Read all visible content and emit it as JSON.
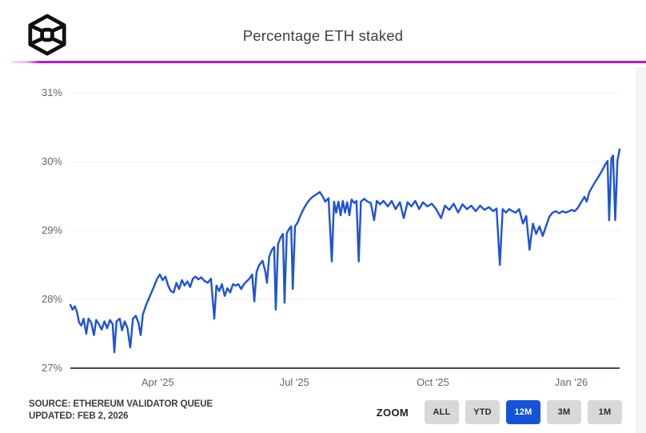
{
  "header": {
    "title": "Percentage ETH staked",
    "logo_icon": "cube-logo-icon",
    "accent_color": "#bd17d8"
  },
  "chart_data": {
    "type": "line",
    "title": "Percentage ETH staked",
    "series_name": "Percentage ETH staked",
    "line_color": "#1d52da",
    "grid": true,
    "legend": "none",
    "ylim": [
      27,
      31
    ],
    "y_ticks": [
      {
        "label": "31%",
        "v": 31
      },
      {
        "label": "30%",
        "v": 30
      },
      {
        "label": "29%",
        "v": 29
      },
      {
        "label": "28%",
        "v": 28
      },
      {
        "label": "27%",
        "v": 27
      }
    ],
    "x_range": [
      "Feb 2025",
      "Feb 2026"
    ],
    "x_ticks": [
      {
        "label": "Apr '25",
        "f": 0.159
      },
      {
        "label": "Jul '25",
        "f": 0.408
      },
      {
        "label": "Oct '25",
        "f": 0.66
      },
      {
        "label": "Jan '26",
        "f": 0.912
      }
    ],
    "points": [
      [
        0.0,
        27.92
      ],
      [
        0.004,
        27.85
      ],
      [
        0.008,
        27.9
      ],
      [
        0.012,
        27.82
      ],
      [
        0.016,
        27.66
      ],
      [
        0.02,
        27.62
      ],
      [
        0.024,
        27.72
      ],
      [
        0.029,
        27.5
      ],
      [
        0.033,
        27.72
      ],
      [
        0.038,
        27.66
      ],
      [
        0.043,
        27.48
      ],
      [
        0.047,
        27.7
      ],
      [
        0.052,
        27.64
      ],
      [
        0.057,
        27.56
      ],
      [
        0.062,
        27.68
      ],
      [
        0.067,
        27.58
      ],
      [
        0.072,
        27.7
      ],
      [
        0.077,
        27.64
      ],
      [
        0.08,
        27.23
      ],
      [
        0.084,
        27.68
      ],
      [
        0.09,
        27.72
      ],
      [
        0.094,
        27.55
      ],
      [
        0.099,
        27.68
      ],
      [
        0.104,
        27.58
      ],
      [
        0.109,
        27.3
      ],
      [
        0.114,
        27.72
      ],
      [
        0.119,
        27.76
      ],
      [
        0.124,
        27.66
      ],
      [
        0.128,
        27.48
      ],
      [
        0.132,
        27.78
      ],
      [
        0.138,
        27.92
      ],
      [
        0.145,
        28.05
      ],
      [
        0.152,
        28.18
      ],
      [
        0.158,
        28.3
      ],
      [
        0.163,
        28.36
      ],
      [
        0.168,
        28.28
      ],
      [
        0.173,
        28.33
      ],
      [
        0.178,
        28.2
      ],
      [
        0.183,
        28.12
      ],
      [
        0.188,
        28.1
      ],
      [
        0.193,
        28.24
      ],
      [
        0.198,
        28.15
      ],
      [
        0.203,
        28.28
      ],
      [
        0.208,
        28.2
      ],
      [
        0.213,
        28.26
      ],
      [
        0.218,
        28.18
      ],
      [
        0.223,
        28.3
      ],
      [
        0.228,
        28.33
      ],
      [
        0.233,
        28.29
      ],
      [
        0.238,
        28.32
      ],
      [
        0.244,
        28.27
      ],
      [
        0.25,
        28.24
      ],
      [
        0.256,
        28.3
      ],
      [
        0.262,
        27.72
      ],
      [
        0.266,
        28.2
      ],
      [
        0.271,
        28.12
      ],
      [
        0.276,
        28.22
      ],
      [
        0.281,
        28.05
      ],
      [
        0.286,
        28.16
      ],
      [
        0.291,
        28.1
      ],
      [
        0.296,
        28.22
      ],
      [
        0.301,
        28.2
      ],
      [
        0.306,
        28.22
      ],
      [
        0.311,
        28.15
      ],
      [
        0.316,
        28.22
      ],
      [
        0.321,
        28.26
      ],
      [
        0.326,
        28.3
      ],
      [
        0.331,
        28.36
      ],
      [
        0.335,
        27.97
      ],
      [
        0.339,
        28.4
      ],
      [
        0.344,
        28.5
      ],
      [
        0.35,
        28.56
      ],
      [
        0.355,
        28.4
      ],
      [
        0.358,
        28.24
      ],
      [
        0.362,
        28.62
      ],
      [
        0.367,
        28.72
      ],
      [
        0.371,
        28.76
      ],
      [
        0.374,
        27.85
      ],
      [
        0.378,
        28.8
      ],
      [
        0.383,
        28.9
      ],
      [
        0.387,
        28.95
      ],
      [
        0.39,
        27.95
      ],
      [
        0.394,
        28.96
      ],
      [
        0.398,
        29.02
      ],
      [
        0.402,
        29.06
      ],
      [
        0.405,
        28.15
      ],
      [
        0.409,
        29.06
      ],
      [
        0.414,
        29.12
      ],
      [
        0.419,
        29.22
      ],
      [
        0.425,
        29.32
      ],
      [
        0.431,
        29.4
      ],
      [
        0.437,
        29.46
      ],
      [
        0.443,
        29.5
      ],
      [
        0.449,
        29.53
      ],
      [
        0.454,
        29.56
      ],
      [
        0.459,
        29.5
      ],
      [
        0.464,
        29.42
      ],
      [
        0.47,
        29.47
      ],
      [
        0.476,
        28.55
      ],
      [
        0.48,
        29.42
      ],
      [
        0.484,
        29.26
      ],
      [
        0.488,
        29.42
      ],
      [
        0.492,
        29.22
      ],
      [
        0.496,
        29.43
      ],
      [
        0.5,
        29.26
      ],
      [
        0.504,
        29.41
      ],
      [
        0.508,
        29.22
      ],
      [
        0.512,
        29.45
      ],
      [
        0.517,
        29.4
      ],
      [
        0.521,
        29.43
      ],
      [
        0.525,
        28.55
      ],
      [
        0.529,
        29.42
      ],
      [
        0.535,
        29.46
      ],
      [
        0.541,
        29.42
      ],
      [
        0.547,
        29.4
      ],
      [
        0.553,
        29.15
      ],
      [
        0.558,
        29.43
      ],
      [
        0.564,
        29.38
      ],
      [
        0.57,
        29.43
      ],
      [
        0.578,
        29.35
      ],
      [
        0.585,
        29.43
      ],
      [
        0.592,
        29.31
      ],
      [
        0.6,
        29.41
      ],
      [
        0.607,
        29.18
      ],
      [
        0.614,
        29.41
      ],
      [
        0.621,
        29.35
      ],
      [
        0.628,
        29.43
      ],
      [
        0.635,
        29.31
      ],
      [
        0.642,
        29.41
      ],
      [
        0.65,
        29.35
      ],
      [
        0.658,
        29.39
      ],
      [
        0.666,
        29.31
      ],
      [
        0.675,
        29.18
      ],
      [
        0.682,
        29.36
      ],
      [
        0.69,
        29.3
      ],
      [
        0.698,
        29.39
      ],
      [
        0.706,
        29.26
      ],
      [
        0.714,
        29.38
      ],
      [
        0.722,
        29.31
      ],
      [
        0.73,
        29.36
      ],
      [
        0.738,
        29.28
      ],
      [
        0.746,
        29.36
      ],
      [
        0.754,
        29.3
      ],
      [
        0.762,
        29.34
      ],
      [
        0.77,
        29.28
      ],
      [
        0.776,
        29.32
      ],
      [
        0.782,
        28.5
      ],
      [
        0.787,
        29.31
      ],
      [
        0.793,
        29.26
      ],
      [
        0.799,
        29.31
      ],
      [
        0.805,
        29.28
      ],
      [
        0.811,
        29.26
      ],
      [
        0.817,
        29.31
      ],
      [
        0.824,
        29.1
      ],
      [
        0.83,
        29.21
      ],
      [
        0.836,
        28.72
      ],
      [
        0.842,
        29.1
      ],
      [
        0.848,
        28.95
      ],
      [
        0.854,
        29.06
      ],
      [
        0.86,
        28.92
      ],
      [
        0.866,
        29.06
      ],
      [
        0.872,
        29.2
      ],
      [
        0.878,
        29.26
      ],
      [
        0.884,
        29.28
      ],
      [
        0.89,
        29.25
      ],
      [
        0.896,
        29.28
      ],
      [
        0.902,
        29.26
      ],
      [
        0.908,
        29.28
      ],
      [
        0.913,
        29.3
      ],
      [
        0.918,
        29.28
      ],
      [
        0.924,
        29.33
      ],
      [
        0.93,
        29.41
      ],
      [
        0.936,
        29.49
      ],
      [
        0.94,
        29.42
      ],
      [
        0.945,
        29.56
      ],
      [
        0.95,
        29.63
      ],
      [
        0.955,
        29.7
      ],
      [
        0.96,
        29.76
      ],
      [
        0.965,
        29.83
      ],
      [
        0.97,
        29.9
      ],
      [
        0.974,
        29.96
      ],
      [
        0.978,
        30.01
      ],
      [
        0.981,
        29.15
      ],
      [
        0.985,
        30.05
      ],
      [
        0.988,
        30.09
      ],
      [
        0.992,
        29.15
      ],
      [
        0.996,
        30.02
      ],
      [
        1.0,
        30.18
      ]
    ]
  },
  "footer": {
    "source_line1": "SOURCE: ETHEREUM VALIDATOR QUEUE",
    "source_line2": "UPDATED: FEB 2, 2026",
    "zoom_label": "ZOOM",
    "active_button_color": "#1553d6",
    "zoom_buttons": [
      {
        "label": "ALL",
        "active": false
      },
      {
        "label": "YTD",
        "active": false
      },
      {
        "label": "12M",
        "active": true
      },
      {
        "label": "3M",
        "active": false
      },
      {
        "label": "1M",
        "active": false
      }
    ]
  }
}
